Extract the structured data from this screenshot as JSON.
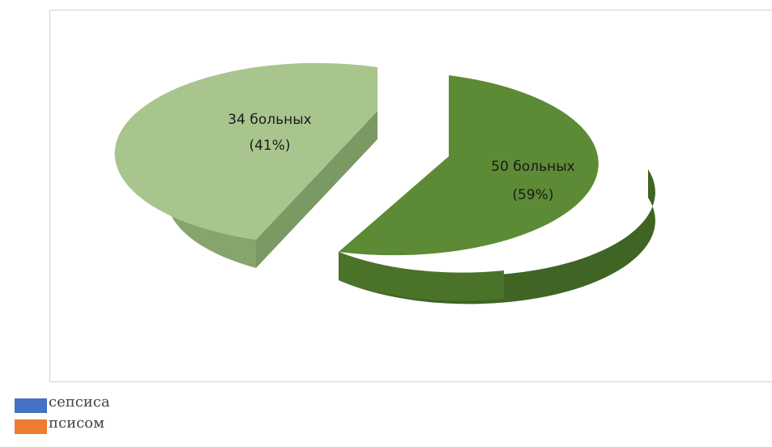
{
  "chart_data": {
    "type": "pie",
    "slices": [
      {
        "value": 50,
        "percent": 59,
        "label_line1": "50 больных",
        "label_line2": "(59%)",
        "color_top": "#5c8a35",
        "color_side": "#3f6424"
      },
      {
        "value": 34,
        "percent": 41,
        "label_line1": "34 больных",
        "label_line2": "(41%)",
        "color_top": "#a9c58e",
        "color_side": "#86a56c"
      }
    ],
    "legend": [
      {
        "label": "сепсиса",
        "color": "#4472c4"
      },
      {
        "label": "псисом",
        "color": "#ed7d31"
      }
    ]
  }
}
